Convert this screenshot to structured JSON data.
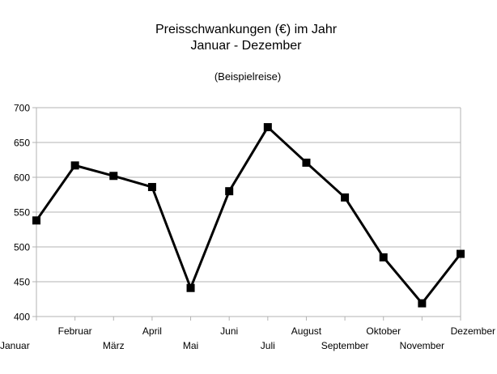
{
  "chart_data": {
    "type": "line",
    "title": "Preisschwankungen (€) im Jahr",
    "title_line2": "Januar - Dezember",
    "subtitle": "(Beispielreise)",
    "xlabel": "",
    "ylabel": "",
    "categories": [
      "Januar",
      "Februar",
      "März",
      "April",
      "Mai",
      "Juni",
      "Juli",
      "August",
      "September",
      "Oktober",
      "November",
      "Dezember"
    ],
    "series": [
      {
        "values": [
          538,
          617,
          602,
          586,
          441,
          580,
          672,
          621,
          571,
          485,
          419,
          490
        ],
        "color": "#000000",
        "marker": "square"
      }
    ],
    "ylim": [
      400,
      700
    ],
    "yticks": [
      400,
      450,
      500,
      550,
      600,
      650,
      700
    ],
    "grid": true,
    "legend": "none"
  }
}
